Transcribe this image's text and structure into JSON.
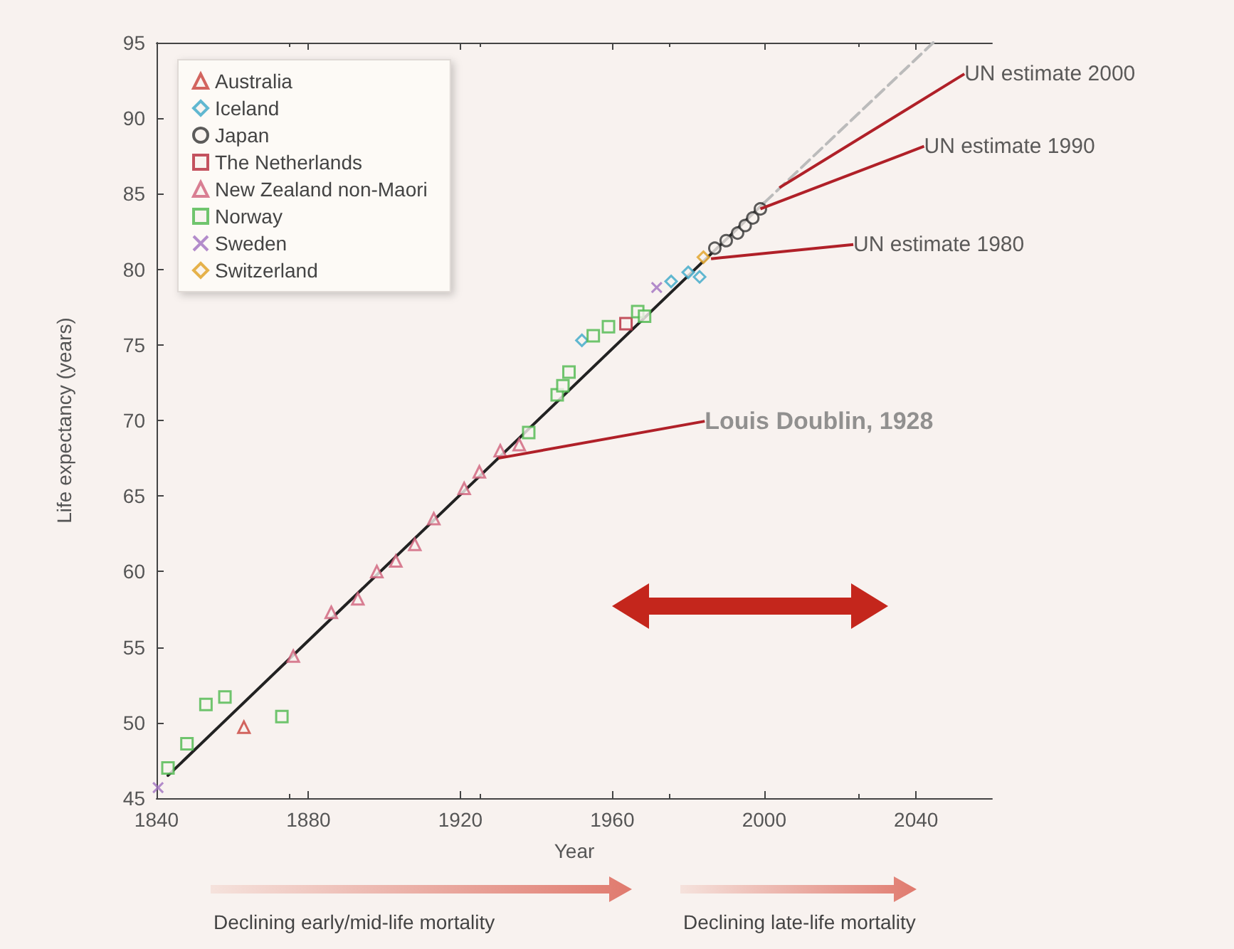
{
  "chart_data": {
    "type": "scatter",
    "xlabel": "Year",
    "ylabel": "Life expectancy (years)",
    "xlim": [
      1840,
      2060
    ],
    "ylim": [
      45,
      95
    ],
    "xticks": [
      1840,
      1880,
      1920,
      1960,
      2000,
      2040
    ],
    "yticks": [
      45,
      50,
      55,
      60,
      65,
      70,
      75,
      80,
      85,
      90,
      95
    ],
    "grid": false,
    "legend": "top left",
    "series": [
      {
        "name": "Australia",
        "color": "#c8403a",
        "marker": "triangle",
        "x": [
          1863
        ],
        "values": [
          49.7
        ]
      },
      {
        "name": "Iceland",
        "color": "#3aa8c8",
        "marker": "diamond",
        "x": [
          1952,
          1975.5,
          1980,
          1983
        ],
        "values": [
          75.3,
          79.2,
          79.8,
          79.5
        ]
      },
      {
        "name": "Japan",
        "color": "#333333",
        "marker": "circle",
        "x": [
          1987,
          1990,
          1993,
          1995,
          1997,
          1999
        ],
        "values": [
          81.4,
          81.9,
          82.4,
          82.9,
          83.4,
          84.0
        ]
      },
      {
        "name": "The Netherlands",
        "color": "#b5283a",
        "marker": "square",
        "x": [
          1963.6
        ],
        "values": [
          76.4
        ]
      },
      {
        "name": "New Zealand non-Maori",
        "color": "#d0607a",
        "marker": "triangle",
        "x": [
          1876,
          1886,
          1893,
          1898,
          1903,
          1908,
          1913,
          1921,
          1925,
          1930.5,
          1935.5
        ],
        "values": [
          54.4,
          57.3,
          58.2,
          60.0,
          60.7,
          61.8,
          63.5,
          65.5,
          66.6,
          68.0,
          68.4
        ]
      },
      {
        "name": "Norway",
        "color": "#4cb84c",
        "marker": "square",
        "x": [
          1843,
          1848,
          1853,
          1858,
          1873,
          1938,
          1945.5,
          1947,
          1948.6,
          1955,
          1959,
          1966.7,
          1968.5
        ],
        "values": [
          47.0,
          48.6,
          51.2,
          51.7,
          50.4,
          69.2,
          71.7,
          72.3,
          73.2,
          75.6,
          76.2,
          77.2,
          76.9
        ]
      },
      {
        "name": "Sweden",
        "color": "#a070c0",
        "marker": "cross",
        "x": [
          1840.4,
          1971.7
        ],
        "values": [
          45.7,
          78.8
        ]
      },
      {
        "name": "Switzerland",
        "color": "#e0a020",
        "marker": "diamond",
        "x": [
          1984
        ],
        "values": [
          80.8
        ]
      },
      {
        "type": "line",
        "color": "#222222",
        "line_style": "solid",
        "marker": "none",
        "x": [
          1843,
          2000
        ],
        "values": [
          46.5,
          84.4
        ]
      },
      {
        "type": "line",
        "color": "#bbbbbb",
        "line_style": "dashed",
        "marker": "none",
        "x": [
          2000,
          2044.5
        ],
        "values": [
          84.4,
          95
        ]
      }
    ],
    "annotations": [
      {
        "text": "UN estimate 2000",
        "x": 2004,
        "y": 85.4
      },
      {
        "text": "UN estimate 1990",
        "x": 1999,
        "y": 84.0
      },
      {
        "text": "UN estimate 1980",
        "x": 1986,
        "y": 80.7
      },
      {
        "text": "Louis Doublin, 1928",
        "x": 1930,
        "y": 67.5
      },
      "Declining early/mid-life mortality",
      "Declining late-life mortality"
    ]
  }
}
